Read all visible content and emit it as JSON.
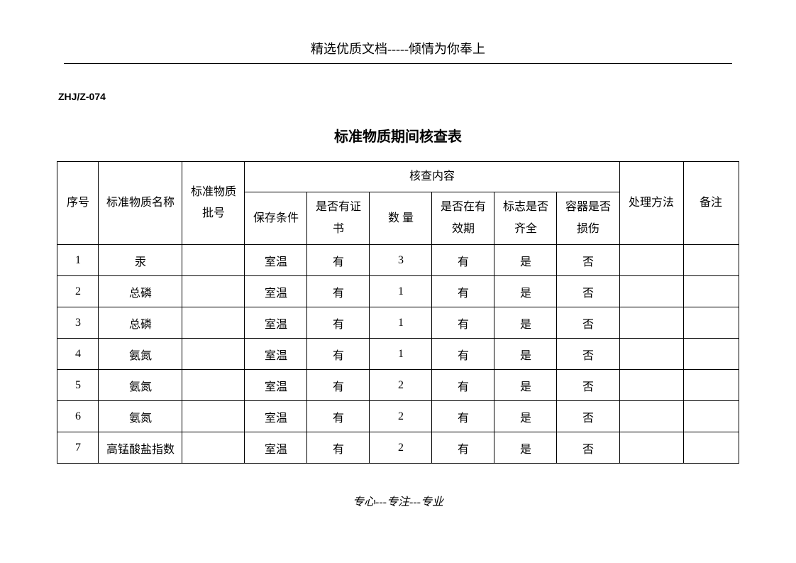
{
  "header_text": "精选优质文档-----倾情为你奉上",
  "doc_code": "ZHJ/Z-074",
  "doc_title": "标准物质期间核查表",
  "footer_text": "专心---专注---专业",
  "columns": {
    "seq": "序号",
    "material_name": "标准物质名称",
    "batch_no": "标准物质批号",
    "check_group": "核查内容",
    "storage_cond": "保存条件",
    "has_cert": "是否有证书",
    "quantity": "数  量",
    "in_validity": "是否在有效期",
    "label_complete": "标志是否齐全",
    "container_damage": "容器是否损伤",
    "handling": "处理方法",
    "remark": "备注"
  },
  "rows": [
    {
      "seq": "1",
      "name": "汞",
      "batch": "",
      "storage": "室温",
      "cert": "有",
      "qty": "3",
      "validity": "有",
      "label": "是",
      "damage": "否",
      "handling": "",
      "remark": ""
    },
    {
      "seq": "2",
      "name": "总磷",
      "batch": "",
      "storage": "室温",
      "cert": "有",
      "qty": "1",
      "validity": "有",
      "label": "是",
      "damage": "否",
      "handling": "",
      "remark": ""
    },
    {
      "seq": "3",
      "name": "总磷",
      "batch": "",
      "storage": "室温",
      "cert": "有",
      "qty": "1",
      "validity": "有",
      "label": "是",
      "damage": "否",
      "handling": "",
      "remark": ""
    },
    {
      "seq": "4",
      "name": "氨氮",
      "batch": "",
      "storage": "室温",
      "cert": "有",
      "qty": "1",
      "validity": "有",
      "label": "是",
      "damage": "否",
      "handling": "",
      "remark": ""
    },
    {
      "seq": "5",
      "name": "氨氮",
      "batch": "",
      "storage": "室温",
      "cert": "有",
      "qty": "2",
      "validity": "有",
      "label": "是",
      "damage": "否",
      "handling": "",
      "remark": ""
    },
    {
      "seq": "6",
      "name": "氨氮",
      "batch": "",
      "storage": "室温",
      "cert": "有",
      "qty": "2",
      "validity": "有",
      "label": "是",
      "damage": "否",
      "handling": "",
      "remark": ""
    },
    {
      "seq": "7",
      "name": "高锰酸盐指数",
      "batch": "",
      "storage": "室温",
      "cert": "有",
      "qty": "2",
      "validity": "有",
      "label": "是",
      "damage": "否",
      "handling": "",
      "remark": ""
    }
  ]
}
